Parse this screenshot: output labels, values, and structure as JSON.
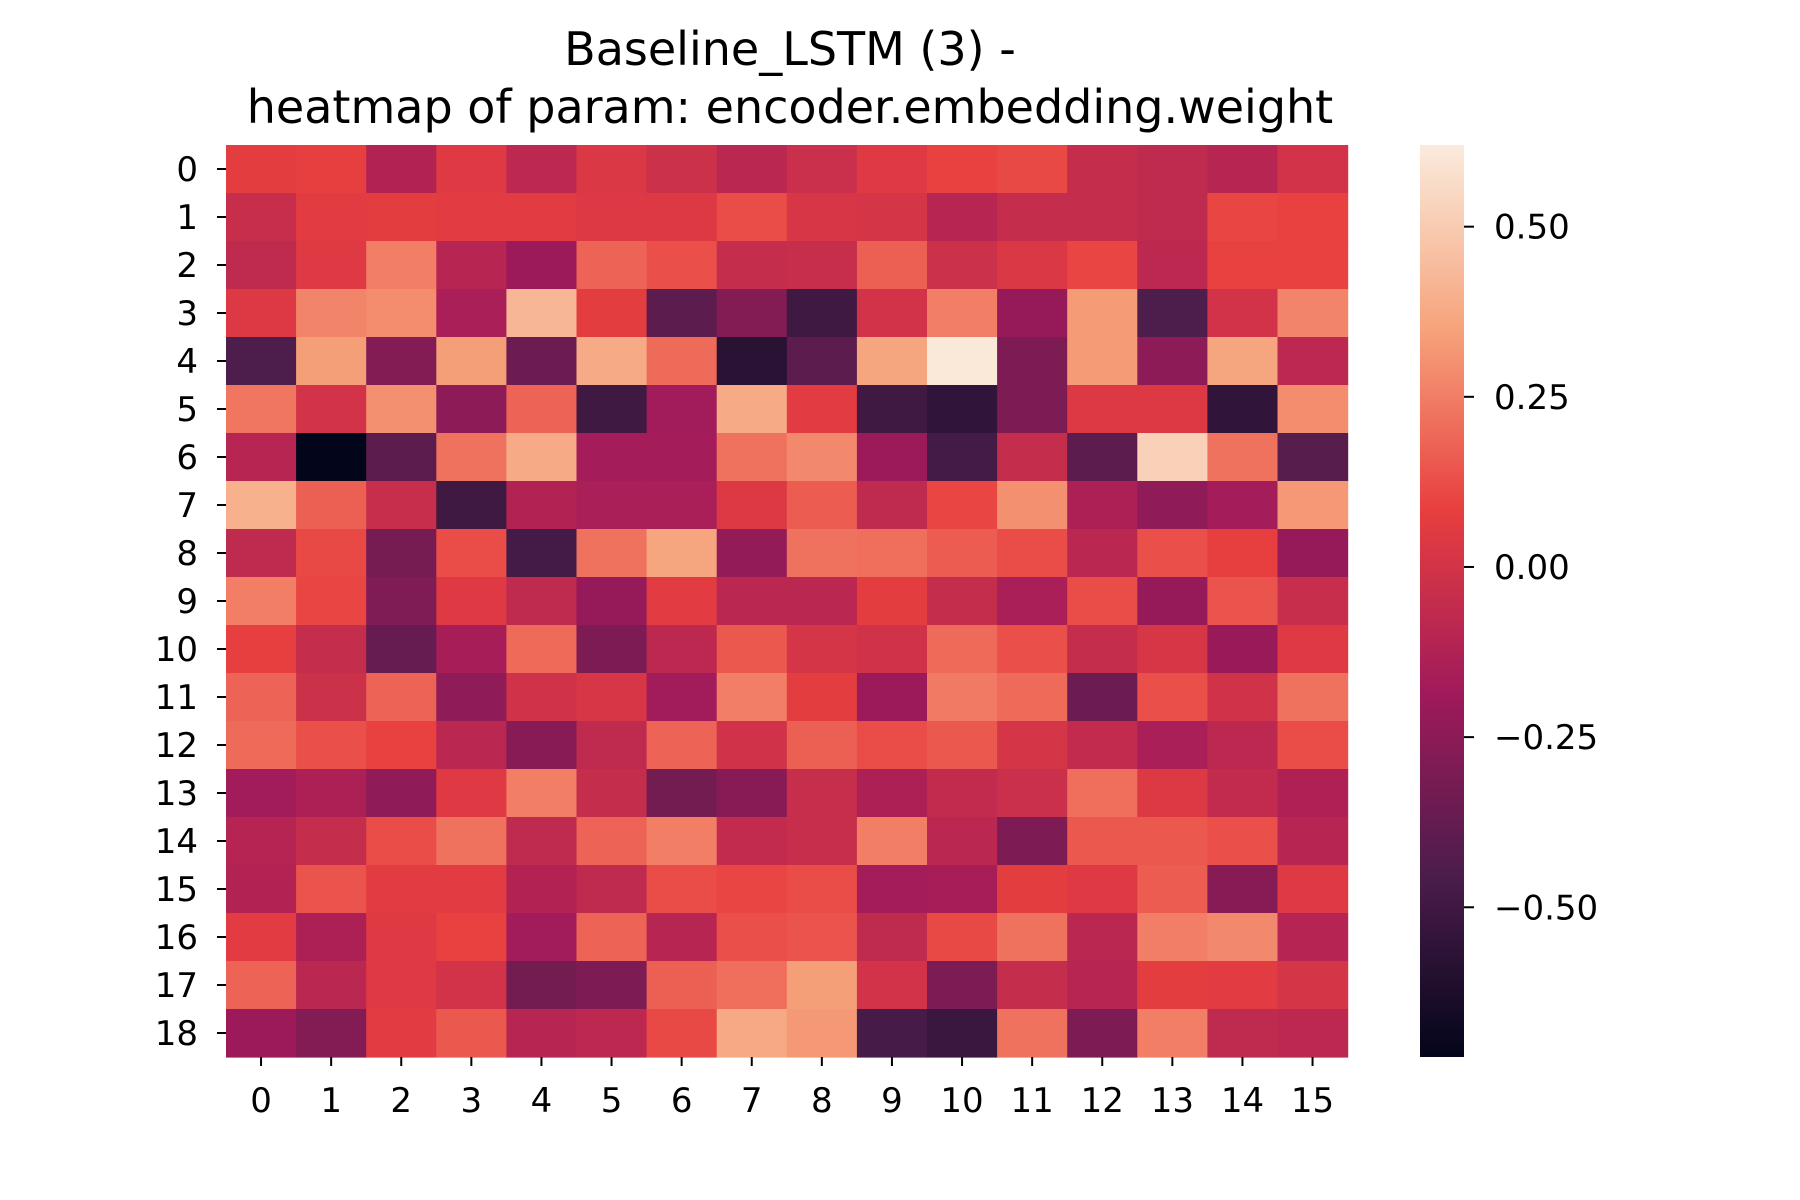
{
  "chart_data": {
    "type": "heatmap",
    "title_lines": [
      "Baseline_LSTM (3) -",
      "heatmap of param: encoder.embedding.weight"
    ],
    "xlabel": "",
    "ylabel": "",
    "x_ticks": [
      "0",
      "1",
      "2",
      "3",
      "4",
      "5",
      "6",
      "7",
      "8",
      "9",
      "10",
      "11",
      "12",
      "13",
      "14",
      "15"
    ],
    "y_ticks": [
      "0",
      "1",
      "2",
      "3",
      "4",
      "5",
      "6",
      "7",
      "8",
      "9",
      "10",
      "11",
      "12",
      "13",
      "14",
      "15",
      "16",
      "17",
      "18"
    ],
    "colorbar": {
      "vmin": -0.72,
      "vmax": 0.62,
      "ticks": [
        0.5,
        0.25,
        0.0,
        -0.25,
        -0.5
      ],
      "tick_labels": [
        "0.50",
        "0.25",
        "0.00",
        "−0.25",
        "−0.50"
      ],
      "colormap": "rocket",
      "stops": [
        "#03051a",
        "#4c1d4b",
        "#a11a5b",
        "#e83f3f",
        "#f6a47c",
        "#faebdd"
      ]
    },
    "values": [
      [
        0.07,
        0.08,
        -0.12,
        0.05,
        -0.08,
        0.03,
        -0.02,
        -0.09,
        -0.03,
        0.05,
        0.09,
        0.11,
        -0.05,
        -0.07,
        -0.1,
        0.0
      ],
      [
        -0.04,
        0.06,
        0.07,
        0.06,
        0.06,
        0.04,
        0.04,
        0.12,
        0.02,
        0.01,
        -0.1,
        -0.05,
        -0.05,
        -0.07,
        0.1,
        0.09
      ],
      [
        -0.07,
        0.05,
        0.25,
        -0.1,
        -0.2,
        0.18,
        0.13,
        -0.05,
        -0.04,
        0.17,
        -0.02,
        0.03,
        0.1,
        -0.08,
        0.09,
        0.09
      ],
      [
        0.04,
        0.27,
        0.29,
        -0.15,
        0.42,
        0.07,
        -0.4,
        -0.28,
        -0.5,
        0.0,
        0.25,
        -0.22,
        0.33,
        -0.45,
        0.0,
        0.27
      ],
      [
        -0.45,
        0.34,
        -0.28,
        0.34,
        -0.35,
        0.38,
        0.2,
        -0.58,
        -0.4,
        0.36,
        0.61,
        -0.3,
        0.33,
        -0.25,
        0.36,
        -0.08
      ],
      [
        0.23,
        0.0,
        0.3,
        -0.25,
        0.18,
        -0.5,
        -0.18,
        0.38,
        0.06,
        -0.5,
        -0.55,
        -0.3,
        0.04,
        0.04,
        -0.55,
        0.29
      ],
      [
        -0.1,
        -0.72,
        -0.4,
        0.22,
        0.38,
        -0.17,
        -0.17,
        0.22,
        0.28,
        -0.2,
        -0.48,
        -0.05,
        -0.4,
        0.52,
        0.22,
        -0.42
      ],
      [
        0.4,
        0.17,
        -0.04,
        -0.5,
        -0.12,
        -0.15,
        -0.15,
        0.04,
        0.16,
        -0.07,
        0.1,
        0.3,
        -0.14,
        -0.24,
        -0.17,
        0.32
      ],
      [
        -0.07,
        0.11,
        -0.32,
        0.12,
        -0.48,
        0.22,
        0.36,
        -0.23,
        0.22,
        0.21,
        0.16,
        0.12,
        -0.09,
        0.13,
        0.08,
        -0.22
      ],
      [
        0.25,
        0.1,
        -0.29,
        0.05,
        -0.07,
        -0.22,
        0.06,
        -0.09,
        -0.09,
        0.07,
        -0.05,
        -0.15,
        0.12,
        -0.22,
        0.14,
        -0.04
      ],
      [
        0.08,
        -0.05,
        -0.37,
        -0.16,
        0.2,
        -0.3,
        -0.08,
        0.15,
        0.01,
        -0.01,
        0.2,
        0.13,
        -0.05,
        0.02,
        -0.21,
        0.05
      ],
      [
        0.18,
        -0.02,
        0.18,
        -0.24,
        -0.01,
        0.02,
        -0.18,
        0.25,
        0.07,
        -0.2,
        0.24,
        0.2,
        -0.35,
        0.13,
        -0.01,
        0.22
      ],
      [
        0.2,
        0.13,
        0.09,
        -0.09,
        -0.27,
        -0.07,
        0.18,
        -0.01,
        0.17,
        0.12,
        0.15,
        0.01,
        -0.06,
        -0.15,
        -0.08,
        0.12
      ],
      [
        -0.18,
        -0.14,
        -0.24,
        0.05,
        0.25,
        -0.05,
        -0.33,
        -0.27,
        -0.04,
        -0.14,
        -0.06,
        -0.03,
        0.21,
        0.04,
        -0.06,
        -0.13
      ],
      [
        -0.11,
        -0.05,
        0.12,
        0.22,
        -0.07,
        0.18,
        0.25,
        -0.06,
        -0.04,
        0.25,
        -0.09,
        -0.3,
        0.15,
        0.15,
        0.13,
        -0.1
      ],
      [
        -0.12,
        0.14,
        0.06,
        0.06,
        -0.12,
        -0.07,
        0.12,
        0.1,
        0.12,
        -0.17,
        -0.16,
        0.07,
        0.05,
        0.16,
        -0.27,
        0.05
      ],
      [
        0.06,
        -0.14,
        0.05,
        0.09,
        -0.18,
        0.18,
        -0.1,
        0.13,
        0.14,
        -0.07,
        0.11,
        0.22,
        -0.09,
        0.25,
        0.28,
        -0.11
      ],
      [
        0.18,
        -0.09,
        0.05,
        0.0,
        -0.33,
        -0.3,
        0.17,
        0.21,
        0.34,
        0.0,
        -0.3,
        -0.05,
        -0.1,
        0.07,
        0.06,
        0.01
      ],
      [
        -0.2,
        -0.28,
        0.06,
        0.15,
        -0.1,
        -0.08,
        0.11,
        0.37,
        0.32,
        -0.47,
        -0.52,
        0.22,
        -0.3,
        0.25,
        -0.07,
        -0.08
      ]
    ]
  }
}
